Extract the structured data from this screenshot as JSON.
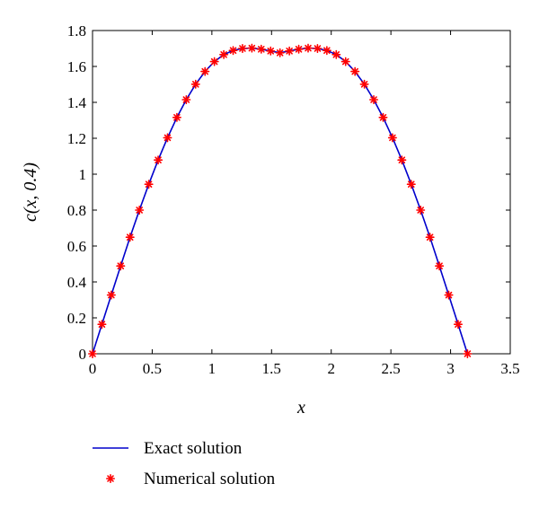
{
  "chart_data": {
    "type": "line",
    "title": "",
    "xlabel": "x",
    "ylabel": "c(x, 0.4)",
    "xlim": [
      0,
      3.5
    ],
    "ylim": [
      0,
      1.8
    ],
    "xticks": [
      0,
      0.5,
      1,
      1.5,
      2,
      2.5,
      3,
      3.5
    ],
    "xtick_labels": [
      "0",
      "0.5",
      "1",
      "1.5",
      "2",
      "2.5",
      "3",
      "3.5"
    ],
    "yticks": [
      0,
      0.2,
      0.4,
      0.6,
      0.8,
      1,
      1.2,
      1.4,
      1.6,
      1.8
    ],
    "ytick_labels": [
      "0",
      "0.2",
      "0.4",
      "0.6",
      "0.8",
      "1",
      "1.2",
      "1.4",
      "1.6",
      "1.8"
    ],
    "grid": false,
    "legend_position": "bottom",
    "series": [
      {
        "name": "Exact solution",
        "style": "line",
        "color": "#0000cc",
        "x": [
          0.0,
          0.0785,
          0.157,
          0.2356,
          0.3142,
          0.3927,
          0.4712,
          0.5498,
          0.6283,
          0.7069,
          0.7854,
          0.8639,
          0.9425,
          1.021,
          1.0996,
          1.1781,
          1.2566,
          1.3352,
          1.4137,
          1.4923,
          1.5708,
          1.6493,
          1.7279,
          1.8064,
          1.885,
          1.9635,
          2.042,
          2.1206,
          2.1991,
          2.2777,
          2.3562,
          2.4347,
          2.5133,
          2.5918,
          2.6704,
          2.7489,
          2.8274,
          2.906,
          2.9845,
          3.0631,
          3.1416
        ],
        "y": [
          0.0,
          0.164,
          0.327,
          0.489,
          0.649,
          0.8,
          0.944,
          1.079,
          1.203,
          1.316,
          1.415,
          1.501,
          1.572,
          1.627,
          1.666,
          1.689,
          1.7,
          1.702,
          1.696,
          1.686,
          1.676,
          1.686,
          1.696,
          1.702,
          1.7,
          1.689,
          1.666,
          1.627,
          1.572,
          1.501,
          1.415,
          1.316,
          1.203,
          1.079,
          0.944,
          0.8,
          0.649,
          0.489,
          0.327,
          0.164,
          0.0
        ]
      },
      {
        "name": "Numerical solution",
        "style": "marker",
        "marker": "asterisk",
        "color": "#ff0000",
        "x": [
          0.0,
          0.0785,
          0.157,
          0.2356,
          0.3142,
          0.3927,
          0.4712,
          0.5498,
          0.6283,
          0.7069,
          0.7854,
          0.8639,
          0.9425,
          1.021,
          1.0996,
          1.1781,
          1.2566,
          1.3352,
          1.4137,
          1.4923,
          1.5708,
          1.6493,
          1.7279,
          1.8064,
          1.885,
          1.9635,
          2.042,
          2.1206,
          2.1991,
          2.2777,
          2.3562,
          2.4347,
          2.5133,
          2.5918,
          2.6704,
          2.7489,
          2.8274,
          2.906,
          2.9845,
          3.0631,
          3.1416
        ],
        "y": [
          0.0,
          0.164,
          0.327,
          0.489,
          0.649,
          0.8,
          0.944,
          1.079,
          1.203,
          1.316,
          1.415,
          1.501,
          1.572,
          1.627,
          1.666,
          1.689,
          1.7,
          1.702,
          1.696,
          1.686,
          1.676,
          1.686,
          1.696,
          1.702,
          1.7,
          1.689,
          1.666,
          1.627,
          1.572,
          1.501,
          1.415,
          1.316,
          1.203,
          1.079,
          0.944,
          0.8,
          0.649,
          0.489,
          0.327,
          0.164,
          0.0
        ]
      }
    ]
  }
}
